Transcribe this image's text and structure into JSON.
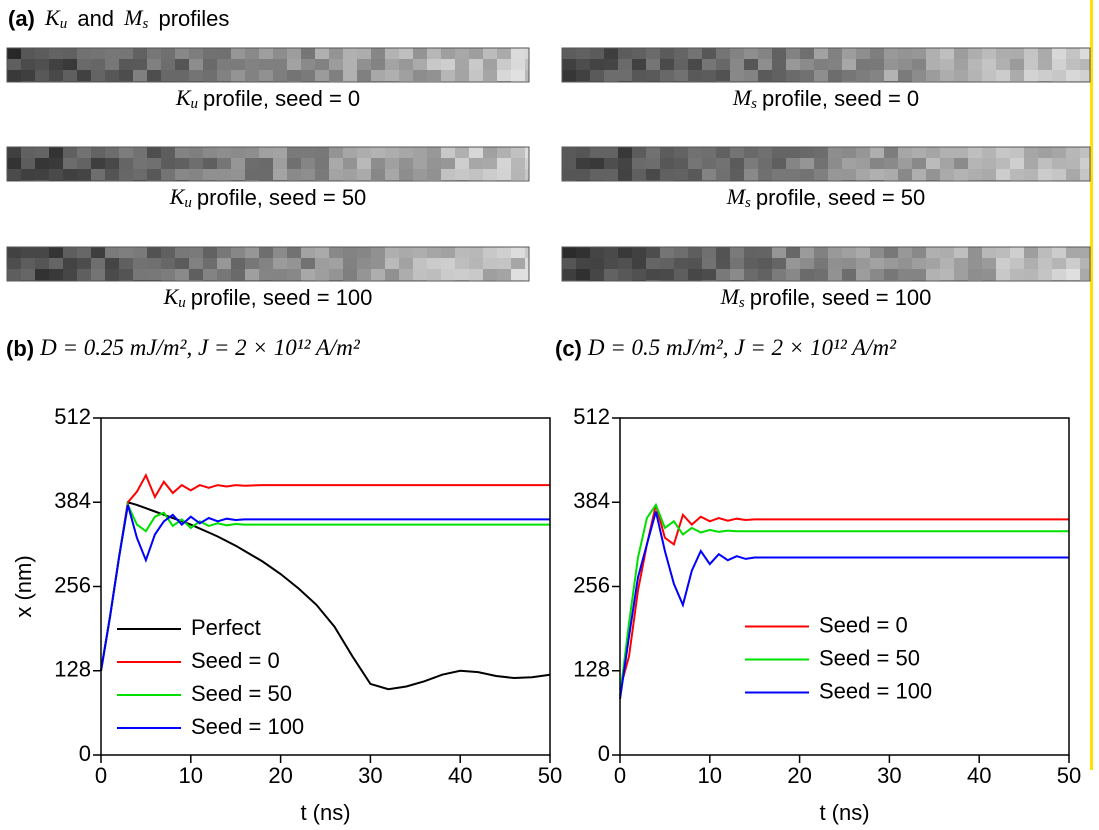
{
  "panel_a": {
    "tag": "(a)",
    "title_k": "K",
    "title_k_sub": "u",
    "title_and": "and",
    "title_m": "M",
    "title_m_sub": "s",
    "title_rest": "profiles",
    "profiles": [
      {
        "symbol": "K",
        "subscript": "u",
        "label": "profile, seed = 0"
      },
      {
        "symbol": "M",
        "subscript": "s",
        "label": "profile, seed = 0"
      },
      {
        "symbol": "K",
        "subscript": "u",
        "label": "profile, seed = 50"
      },
      {
        "symbol": "M",
        "subscript": "s",
        "label": "profile, seed = 50"
      },
      {
        "symbol": "K",
        "subscript": "u",
        "label": "profile, seed = 100"
      },
      {
        "symbol": "M",
        "subscript": "s",
        "label": "profile, seed = 100"
      }
    ]
  },
  "chart_data": [
    {
      "type": "line",
      "tag": "(b)",
      "title": "D = 0.25 mJ/m², J = 2 × 10¹² A/m²",
      "x_label": "t (ns)",
      "y_label": "x (nm)",
      "legend": "lower left",
      "xlim": [
        0,
        50
      ],
      "xticks": [
        0,
        10,
        20,
        30,
        40,
        50
      ],
      "ylim": [
        0,
        512
      ],
      "yticks": [
        0,
        128,
        256,
        384,
        512
      ],
      "x": [
        0,
        1,
        2,
        3,
        4,
        5,
        6,
        7,
        8,
        9,
        10,
        11,
        12,
        13,
        14,
        15,
        16,
        18,
        20,
        22,
        24,
        26,
        28,
        30,
        32,
        34,
        36,
        38,
        40,
        42,
        44,
        46,
        48,
        50
      ],
      "series": [
        {
          "name": "Perfect",
          "color": "#000000",
          "values": [
            128,
            210,
            300,
            384,
            380,
            375,
            370,
            365,
            360,
            355,
            350,
            344,
            338,
            332,
            325,
            318,
            310,
            294,
            275,
            253,
            228,
            195,
            150,
            108,
            100,
            104,
            112,
            122,
            128,
            126,
            120,
            117,
            118,
            122
          ]
        },
        {
          "name": "Seed = 0",
          "color": "#ff0000",
          "values": [
            128,
            210,
            300,
            384,
            400,
            425,
            392,
            415,
            398,
            410,
            402,
            410,
            406,
            410,
            408,
            410,
            409,
            410,
            410,
            410,
            410,
            410,
            410,
            410,
            410,
            410,
            410,
            410,
            410,
            410,
            410,
            410,
            410,
            410
          ]
        },
        {
          "name": "Seed = 50",
          "color": "#00e000",
          "values": [
            128,
            210,
            300,
            380,
            350,
            340,
            362,
            368,
            348,
            358,
            345,
            355,
            348,
            352,
            349,
            351,
            350,
            350,
            350,
            350,
            350,
            350,
            350,
            350,
            350,
            350,
            350,
            350,
            350,
            350,
            350,
            350,
            350,
            350
          ]
        },
        {
          "name": "Seed = 100",
          "color": "#0000ff",
          "values": [
            128,
            210,
            300,
            380,
            330,
            296,
            335,
            355,
            365,
            350,
            362,
            352,
            360,
            355,
            359,
            357,
            358,
            358,
            358,
            358,
            358,
            358,
            358,
            358,
            358,
            358,
            358,
            358,
            358,
            358,
            358,
            358,
            358,
            358
          ]
        }
      ]
    },
    {
      "type": "line",
      "tag": "(c)",
      "title": "D = 0.5 mJ/m², J = 2 × 10¹² A/m²",
      "x_label": "t (ns)",
      "legend": "center right",
      "xlim": [
        0,
        50
      ],
      "xticks": [
        0,
        10,
        20,
        30,
        40,
        50
      ],
      "ylim": [
        0,
        512
      ],
      "yticks": [
        0,
        128,
        256,
        384,
        512
      ],
      "x": [
        0,
        1,
        2,
        3,
        4,
        5,
        6,
        7,
        8,
        9,
        10,
        11,
        12,
        13,
        14,
        15,
        16,
        18,
        20,
        22,
        24,
        26,
        28,
        30,
        32,
        34,
        36,
        38,
        40,
        42,
        44,
        46,
        48,
        50
      ],
      "series": [
        {
          "name": "Seed = 0",
          "color": "#ff0000",
          "values": [
            100,
            150,
            250,
            320,
            380,
            330,
            320,
            365,
            350,
            362,
            355,
            360,
            356,
            359,
            357,
            358,
            358,
            358,
            358,
            358,
            358,
            358,
            358,
            358,
            358,
            358,
            358,
            358,
            358,
            358,
            358,
            358,
            358,
            358
          ]
        },
        {
          "name": "Seed = 50",
          "color": "#00e000",
          "values": [
            90,
            200,
            300,
            360,
            380,
            345,
            355,
            335,
            345,
            338,
            342,
            339,
            341,
            340,
            340,
            340,
            340,
            340,
            340,
            340,
            340,
            340,
            340,
            340,
            340,
            340,
            340,
            340,
            340,
            340,
            340,
            340,
            340,
            340
          ]
        },
        {
          "name": "Seed = 100",
          "color": "#0000ff",
          "values": [
            85,
            180,
            270,
            320,
            370,
            310,
            260,
            228,
            280,
            310,
            290,
            305,
            296,
            302,
            298,
            300,
            300,
            300,
            300,
            300,
            300,
            300,
            300,
            300,
            300,
            300,
            300,
            300,
            300,
            300,
            300,
            300,
            300,
            300
          ]
        }
      ]
    }
  ]
}
